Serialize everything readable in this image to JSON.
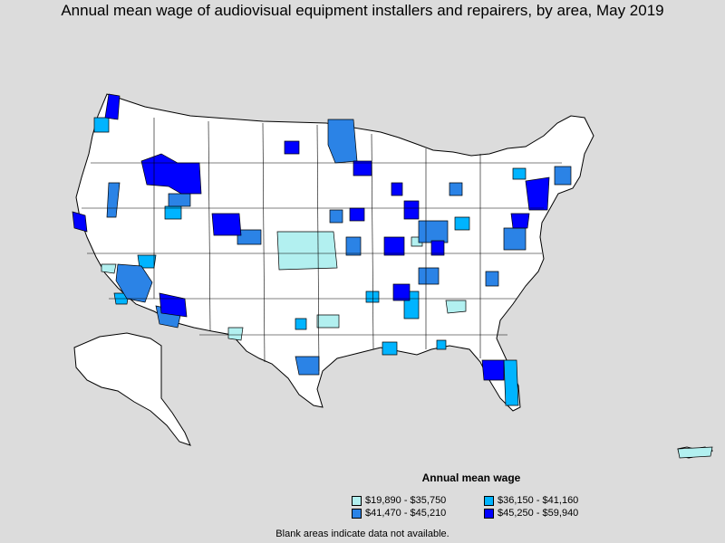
{
  "title": "Annual mean wage of audiovisual equipment installers and repairers, by area, May 2019",
  "legend": {
    "title": "Annual mean wage",
    "items": [
      {
        "label": "$19,890 - $35,750",
        "color": "#b2f0f0"
      },
      {
        "label": "$36,150 - $41,160",
        "color": "#00b4ff"
      },
      {
        "label": "$41,470 - $45,210",
        "color": "#2b83e6"
      },
      {
        "label": "$45,250 - $59,940",
        "color": "#0000ff"
      }
    ]
  },
  "footnote": "Blank areas indicate data not available.",
  "colors": {
    "background": "#dcdcdc",
    "land": "#ffffff",
    "border": "#000000"
  }
}
